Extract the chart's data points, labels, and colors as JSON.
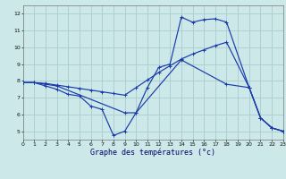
{
  "title": "Graphe des températures (°c)",
  "bg_color": "#cce8e8",
  "grid_color": "#aacccc",
  "line_color": "#1a3aaa",
  "xlim": [
    0,
    23
  ],
  "ylim": [
    4.5,
    12.5
  ],
  "xticks": [
    0,
    1,
    2,
    3,
    4,
    5,
    6,
    7,
    8,
    9,
    10,
    11,
    12,
    13,
    14,
    15,
    16,
    17,
    18,
    19,
    20,
    21,
    22,
    23
  ],
  "yticks": [
    5,
    6,
    7,
    8,
    9,
    10,
    11,
    12
  ],
  "line1_x": [
    0,
    1,
    2,
    3,
    4,
    5,
    6,
    7,
    8,
    9,
    10,
    11,
    12,
    13,
    14,
    15,
    16,
    17,
    18,
    20,
    21,
    22,
    23
  ],
  "line1_y": [
    7.9,
    7.9,
    7.7,
    7.5,
    7.2,
    7.1,
    6.5,
    6.3,
    4.75,
    5.0,
    6.1,
    7.6,
    8.8,
    9.0,
    11.8,
    11.5,
    11.65,
    11.7,
    11.5,
    7.6,
    5.8,
    5.2,
    5.0
  ],
  "line2_x": [
    0,
    1,
    2,
    3,
    4,
    5,
    6,
    7,
    8,
    9,
    10,
    11,
    12,
    13,
    14,
    15,
    16,
    17,
    18,
    20,
    21,
    22,
    23
  ],
  "line2_y": [
    7.9,
    7.9,
    7.85,
    7.75,
    7.65,
    7.55,
    7.45,
    7.35,
    7.25,
    7.15,
    7.6,
    8.05,
    8.5,
    8.9,
    9.3,
    9.6,
    9.85,
    10.1,
    10.3,
    7.6,
    5.8,
    5.2,
    5.0
  ],
  "line3_x": [
    0,
    1,
    2,
    3,
    9,
    10,
    14,
    18,
    20,
    21,
    22,
    23
  ],
  "line3_y": [
    7.9,
    7.9,
    7.8,
    7.7,
    6.1,
    6.1,
    9.25,
    7.8,
    7.6,
    5.8,
    5.2,
    5.0
  ]
}
